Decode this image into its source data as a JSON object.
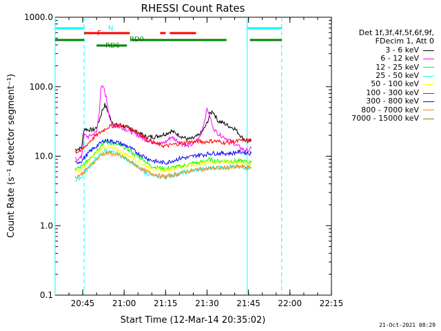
{
  "chart_data": {
    "type": "line",
    "title": "RHESSI Count Rates",
    "xlabel": "Start Time (12-Mar-14 20:35:02)",
    "ylabel": "Count Rate (s⁻¹ detector segment⁻¹)",
    "yscale": "log",
    "ylim": [
      0.1,
      1000
    ],
    "xlim_minutes": [
      0,
      100
    ],
    "x_tick_labels": [
      "20:45",
      "21:00",
      "21:15",
      "21:30",
      "21:45",
      "22:00",
      "22:15"
    ],
    "x_tick_minutes": [
      9.97,
      24.97,
      39.97,
      54.97,
      69.97,
      84.97,
      99.97
    ],
    "y_tick_labels": [
      "0.1",
      "1.0",
      "10.0",
      "100.0",
      "1000.0"
    ],
    "y_tick_values": [
      0.1,
      1,
      10,
      100,
      1000
    ],
    "legend_header": [
      "Det 1f,3f,4f,5f,6f,9f,",
      "FDecim 1, Att 0"
    ],
    "series": [
      {
        "name": "3 - 6 keV",
        "color": "#000000",
        "points": [
          [
            7.2,
            12.5
          ],
          [
            9.5,
            13
          ],
          [
            10.5,
            25
          ],
          [
            12,
            24
          ],
          [
            14,
            24
          ],
          [
            15,
            26
          ],
          [
            16,
            33
          ],
          [
            17,
            45
          ],
          [
            18,
            55
          ],
          [
            19,
            45
          ],
          [
            20,
            35
          ],
          [
            21,
            30
          ],
          [
            22,
            28
          ],
          [
            24,
            28
          ],
          [
            26,
            26
          ],
          [
            28,
            24
          ],
          [
            30,
            22
          ],
          [
            33,
            19
          ],
          [
            36,
            19
          ],
          [
            38,
            20
          ],
          [
            40,
            21
          ],
          [
            42,
            23
          ],
          [
            44,
            21
          ],
          [
            46,
            19
          ],
          [
            48,
            17.5
          ],
          [
            50,
            18
          ],
          [
            52,
            20
          ],
          [
            53,
            22
          ],
          [
            54,
            25
          ],
          [
            55,
            30
          ],
          [
            56,
            40
          ],
          [
            57,
            45
          ],
          [
            58,
            38
          ],
          [
            59,
            32
          ],
          [
            61,
            30
          ],
          [
            63,
            27
          ],
          [
            65,
            25
          ],
          [
            68,
            18
          ],
          [
            70,
            16
          ],
          [
            71,
            17
          ]
        ]
      },
      {
        "name": "6 - 12 keV",
        "color": "#ff00ff",
        "points": [
          [
            7.2,
            9
          ],
          [
            9.5,
            9.5
          ],
          [
            10.5,
            20
          ],
          [
            12,
            19
          ],
          [
            14,
            21
          ],
          [
            15,
            22
          ],
          [
            16,
            45
          ],
          [
            16.5,
            95
          ],
          [
            17.5,
            98
          ],
          [
            18.5,
            70
          ],
          [
            19.5,
            40
          ],
          [
            20.5,
            28
          ],
          [
            22,
            27
          ],
          [
            24,
            26
          ],
          [
            26,
            24
          ],
          [
            28,
            22
          ],
          [
            30,
            20
          ],
          [
            33,
            17
          ],
          [
            36,
            16
          ],
          [
            38,
            15
          ],
          [
            40,
            16
          ],
          [
            42,
            19
          ],
          [
            44,
            17
          ],
          [
            46,
            15
          ],
          [
            48,
            14
          ],
          [
            50,
            15
          ],
          [
            52,
            18
          ],
          [
            53,
            22
          ],
          [
            54,
            32
          ],
          [
            55,
            48
          ],
          [
            56,
            38
          ],
          [
            57,
            26
          ],
          [
            59,
            21
          ],
          [
            61,
            19
          ],
          [
            63,
            17
          ],
          [
            65,
            15
          ],
          [
            68,
            12.5
          ],
          [
            70,
            12
          ],
          [
            71,
            13
          ]
        ]
      },
      {
        "name": "12 - 25 keV",
        "color": "#00ff00",
        "points": [
          [
            7.2,
            6.5
          ],
          [
            9.5,
            7
          ],
          [
            11,
            8
          ],
          [
            13,
            10
          ],
          [
            15,
            12
          ],
          [
            17,
            15
          ],
          [
            18,
            16
          ],
          [
            20,
            15.5
          ],
          [
            22,
            15
          ],
          [
            24,
            14
          ],
          [
            26,
            13
          ],
          [
            28,
            11
          ],
          [
            30,
            10
          ],
          [
            32,
            9
          ],
          [
            34,
            7.5
          ],
          [
            36,
            7
          ],
          [
            38,
            6.8
          ],
          [
            40,
            6.5
          ],
          [
            42,
            6.8
          ],
          [
            44,
            7
          ],
          [
            46,
            7.2
          ],
          [
            48,
            7.5
          ],
          [
            50,
            8
          ],
          [
            52,
            8
          ],
          [
            54,
            8.5
          ],
          [
            56,
            9
          ],
          [
            58,
            8.5
          ],
          [
            60,
            8.5
          ],
          [
            62,
            8.5
          ],
          [
            64,
            8.5
          ],
          [
            66,
            8.5
          ],
          [
            68,
            8.5
          ],
          [
            70,
            8
          ],
          [
            71,
            8.5
          ]
        ]
      },
      {
        "name": "25 - 50 keV",
        "color": "#00ffff",
        "points": [
          [
            7.2,
            4.5
          ],
          [
            9.5,
            5
          ],
          [
            11,
            6
          ],
          [
            13,
            7.5
          ],
          [
            15,
            9.5
          ],
          [
            17,
            11
          ],
          [
            18,
            12
          ],
          [
            20,
            11.5
          ],
          [
            22,
            11
          ],
          [
            24,
            10
          ],
          [
            26,
            9
          ],
          [
            28,
            8
          ],
          [
            30,
            7
          ],
          [
            32,
            6
          ],
          [
            34,
            5.5
          ],
          [
            36,
            5.2
          ],
          [
            38,
            5
          ],
          [
            40,
            5
          ],
          [
            42,
            5.2
          ],
          [
            44,
            5.5
          ],
          [
            46,
            5.8
          ],
          [
            48,
            6
          ],
          [
            50,
            6.2
          ],
          [
            52,
            6.5
          ],
          [
            54,
            6.5
          ],
          [
            56,
            6.8
          ],
          [
            58,
            6.8
          ],
          [
            60,
            6.8
          ],
          [
            62,
            7
          ],
          [
            64,
            7
          ],
          [
            66,
            7
          ],
          [
            68,
            7
          ],
          [
            70,
            6.5
          ],
          [
            71,
            7
          ]
        ]
      },
      {
        "name": "50 - 100 keV",
        "color": "#ffff00",
        "points": [
          [
            7.2,
            6
          ],
          [
            9.5,
            6.5
          ],
          [
            11,
            7.5
          ],
          [
            13,
            9
          ],
          [
            15,
            11
          ],
          [
            17,
            13
          ],
          [
            18,
            13.5
          ],
          [
            20,
            13
          ],
          [
            22,
            12.5
          ],
          [
            24,
            11.5
          ],
          [
            26,
            10.5
          ],
          [
            28,
            9.5
          ],
          [
            30,
            8.5
          ],
          [
            32,
            7.5
          ],
          [
            34,
            7
          ],
          [
            36,
            6.5
          ],
          [
            38,
            6.3
          ],
          [
            40,
            6.2
          ],
          [
            42,
            6.5
          ],
          [
            44,
            6.8
          ],
          [
            46,
            7
          ],
          [
            48,
            7.2
          ],
          [
            50,
            7.5
          ],
          [
            52,
            7.8
          ],
          [
            54,
            8
          ],
          [
            56,
            8.2
          ],
          [
            58,
            8
          ],
          [
            60,
            8.2
          ],
          [
            62,
            8.2
          ],
          [
            64,
            8.2
          ],
          [
            66,
            8.2
          ],
          [
            68,
            8
          ],
          [
            70,
            7.8
          ],
          [
            71,
            8
          ]
        ]
      },
      {
        "name": "100 - 300 keV",
        "color": "#ff0000",
        "points": [
          [
            7.2,
            11.5
          ],
          [
            9.5,
            12
          ],
          [
            11,
            14
          ],
          [
            13,
            17
          ],
          [
            15,
            20
          ],
          [
            17,
            23
          ],
          [
            19,
            26
          ],
          [
            21,
            27.5
          ],
          [
            22,
            28
          ],
          [
            24,
            27.5
          ],
          [
            26,
            26
          ],
          [
            28,
            24
          ],
          [
            30,
            22
          ],
          [
            32,
            19
          ],
          [
            34,
            17
          ],
          [
            36,
            15.5
          ],
          [
            38,
            14.5
          ],
          [
            40,
            14
          ],
          [
            42,
            14.5
          ],
          [
            44,
            15
          ],
          [
            46,
            15.5
          ],
          [
            48,
            16
          ],
          [
            50,
            16
          ],
          [
            52,
            16.5
          ],
          [
            54,
            16
          ],
          [
            56,
            16.5
          ],
          [
            58,
            16.5
          ],
          [
            60,
            16
          ],
          [
            62,
            15.5
          ],
          [
            64,
            16
          ],
          [
            66,
            16.5
          ],
          [
            68,
            17
          ],
          [
            70,
            17
          ],
          [
            71,
            16.5
          ]
        ]
      },
      {
        "name": "300 - 800 keV",
        "color": "#0000ff",
        "points": [
          [
            7.2,
            8
          ],
          [
            9.5,
            8.5
          ],
          [
            11,
            10
          ],
          [
            13,
            12
          ],
          [
            15,
            14
          ],
          [
            17,
            16
          ],
          [
            18,
            17
          ],
          [
            20,
            16.5
          ],
          [
            22,
            16
          ],
          [
            24,
            15
          ],
          [
            26,
            14
          ],
          [
            28,
            12.5
          ],
          [
            30,
            11
          ],
          [
            32,
            10
          ],
          [
            34,
            9
          ],
          [
            36,
            8.5
          ],
          [
            38,
            8.2
          ],
          [
            40,
            8
          ],
          [
            42,
            8.5
          ],
          [
            44,
            9
          ],
          [
            46,
            9.5
          ],
          [
            48,
            9.5
          ],
          [
            50,
            10
          ],
          [
            52,
            10.5
          ],
          [
            54,
            10.5
          ],
          [
            56,
            11
          ],
          [
            58,
            11
          ],
          [
            60,
            11
          ],
          [
            62,
            11
          ],
          [
            64,
            11
          ],
          [
            66,
            11.5
          ],
          [
            68,
            11.5
          ],
          [
            70,
            11
          ],
          [
            71,
            11
          ]
        ]
      },
      {
        "name": "800 - 7000 keV",
        "color": "#ff8000",
        "points": [
          [
            7.2,
            5
          ],
          [
            9.5,
            5.5
          ],
          [
            11,
            6.3
          ],
          [
            13,
            7.5
          ],
          [
            15,
            9
          ],
          [
            17,
            10.5
          ],
          [
            18,
            11
          ],
          [
            20,
            11
          ],
          [
            22,
            10.5
          ],
          [
            24,
            10
          ],
          [
            26,
            9
          ],
          [
            28,
            8
          ],
          [
            30,
            7
          ],
          [
            32,
            6.3
          ],
          [
            34,
            5.8
          ],
          [
            36,
            5.5
          ],
          [
            38,
            5.2
          ],
          [
            40,
            5.1
          ],
          [
            42,
            5.3
          ],
          [
            44,
            5.5
          ],
          [
            46,
            5.8
          ],
          [
            48,
            6
          ],
          [
            50,
            6.2
          ],
          [
            52,
            6.5
          ],
          [
            54,
            6.5
          ],
          [
            56,
            6.7
          ],
          [
            58,
            6.8
          ],
          [
            60,
            6.8
          ],
          [
            62,
            6.8
          ],
          [
            64,
            6.8
          ],
          [
            66,
            7
          ],
          [
            68,
            7
          ],
          [
            70,
            6.8
          ],
          [
            71,
            7
          ]
        ]
      },
      {
        "name": "7000 - 15000 keV",
        "color": "#808000",
        "points": []
      }
    ],
    "flags": [
      {
        "label": "N",
        "color": "#00ffff",
        "segments": [
          [
            0,
            10.5
          ],
          [
            69.5,
            82
          ]
        ]
      },
      {
        "label": "F",
        "color": "#ff0000",
        "segments": [
          [
            10.5,
            27
          ],
          [
            38,
            40
          ],
          [
            41.5,
            51
          ]
        ]
      },
      {
        "label": "RD0",
        "color": "#008000",
        "segments": [
          [
            0,
            10.5
          ],
          [
            27.5,
            62
          ],
          [
            70.5,
            82
          ]
        ]
      },
      {
        "label": "RD6",
        "color": "#008000",
        "segments": [
          [
            15,
            26
          ]
        ]
      }
    ],
    "markers": {
      "solid_minutes": [
        0,
        69.5
      ],
      "dashed_minutes": [
        10.5,
        82
      ]
    }
  },
  "timestamp": "21-Oct-2021 08:29"
}
